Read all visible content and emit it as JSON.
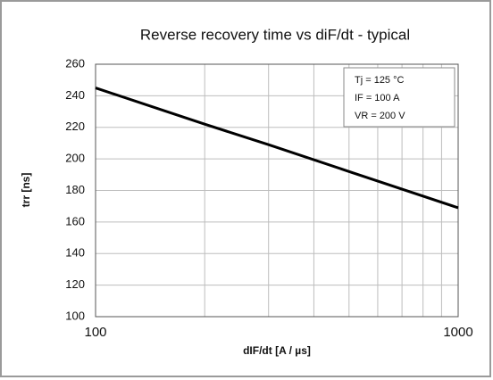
{
  "chart_data": {
    "type": "line",
    "title": "Reverse recovery time vs diF/dt - typical",
    "x_label": "dIF/dt [A / µs]",
    "y_label": "trr [ns]",
    "annotations": [
      "Tj = 125 °C",
      "IF = 100 A",
      "VR = 200 V"
    ],
    "x": [
      100,
      200,
      300,
      500,
      1000
    ],
    "series": [
      {
        "name": "trr",
        "color": "#000000",
        "values": [
          245,
          222,
          209,
          192,
          169
        ]
      }
    ],
    "x_log": true,
    "xlim": [
      100,
      1000
    ],
    "xticks": [
      100,
      1000
    ],
    "xgrid_minor": [
      200,
      300,
      400,
      500,
      600,
      700,
      800,
      900
    ],
    "ylim": [
      100,
      260
    ],
    "yticks": [
      100,
      120,
      140,
      160,
      180,
      200,
      220,
      240,
      260
    ],
    "grid": true
  }
}
